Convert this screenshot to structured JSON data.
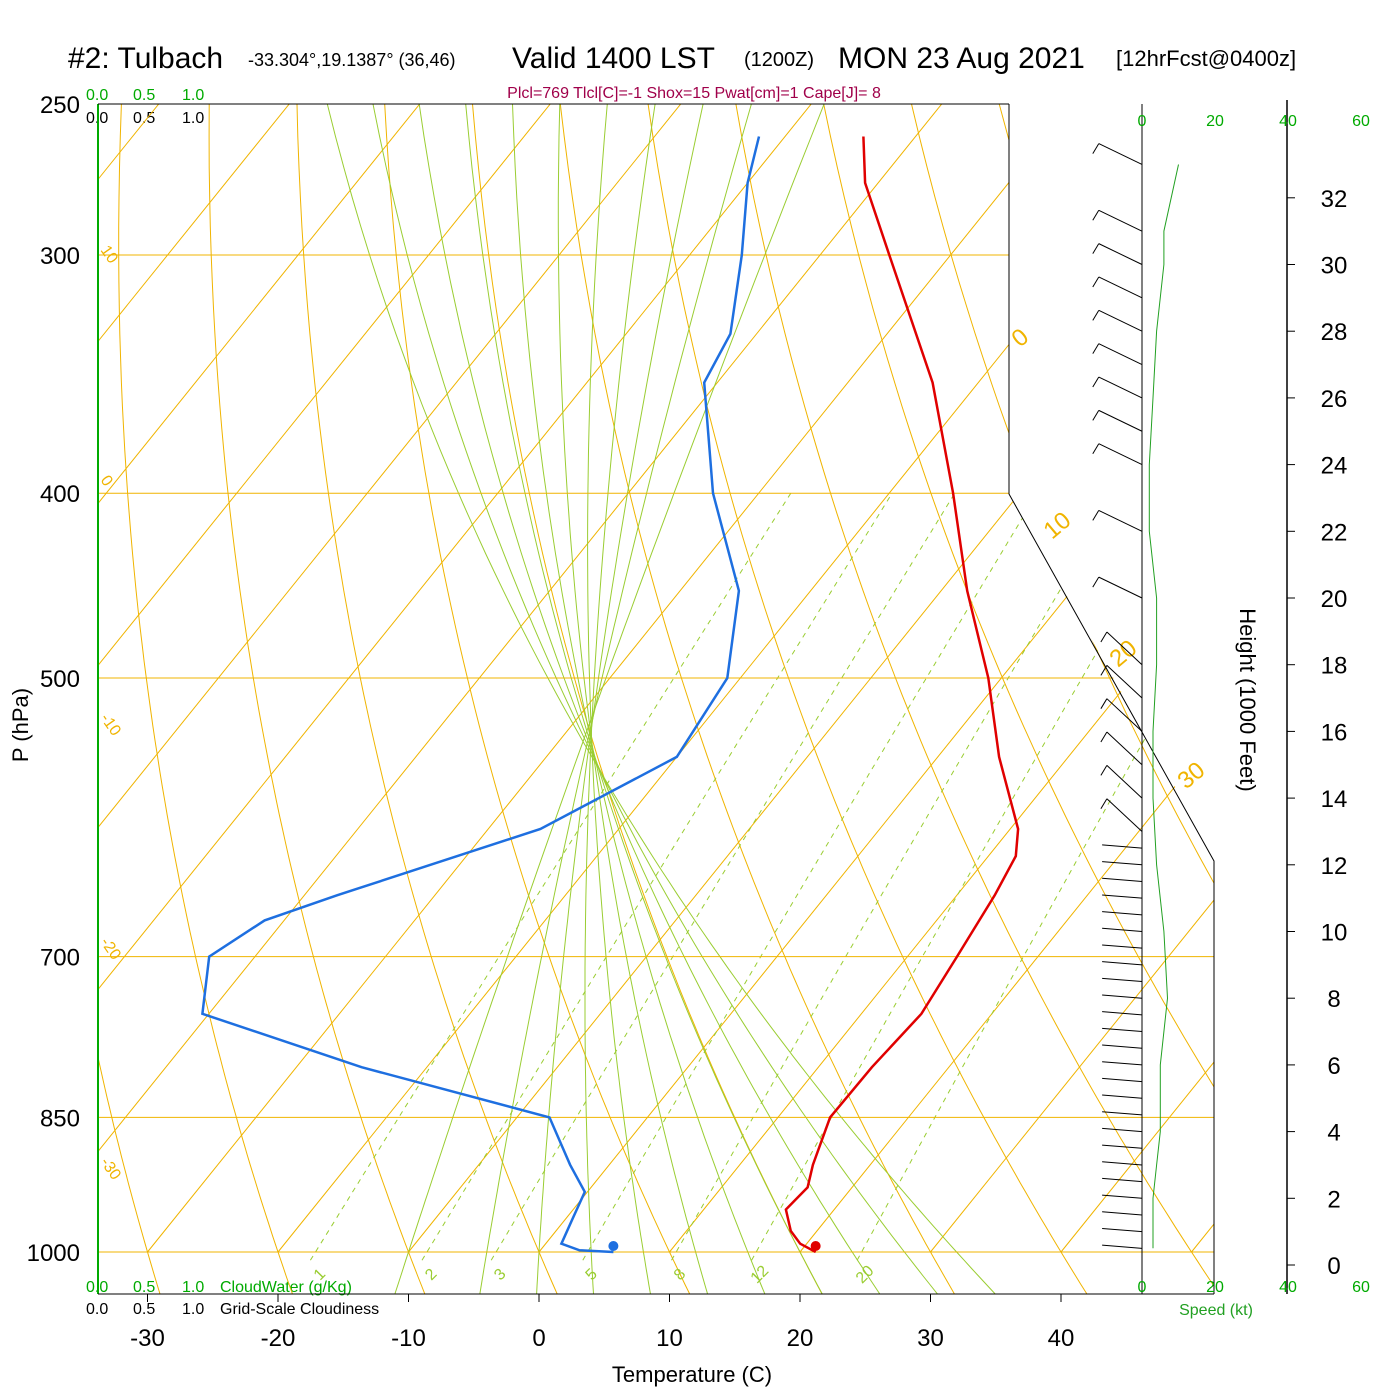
{
  "header": {
    "station": "#2: Tulbach",
    "coords": "-33.304°,19.1387° (36,46)",
    "valid": "Valid 1400 LST",
    "utc": "(1200Z)",
    "date": "MON 23 Aug 2021",
    "forecast": "[12hrFcst@0400z]",
    "indices": "Plcl=769 Tlcl[C]=-1 Shox=15 Pwat[cm]=1 Cape[J]= 8"
  },
  "colors": {
    "isobar": "#f0b400",
    "isotherm": "#f0b400",
    "dry_adiabat": "#f0b400",
    "moist_adiabat": "#9acd32",
    "mixing_ratio": "#9acd32",
    "temperature": "#e00000",
    "dewpoint": "#1e6fe0",
    "green_label": "#00aa00",
    "indices_text": "#a0004a",
    "wind_speed": "#22a022"
  },
  "scales": {
    "cloudwater_ticks": [
      "0.0",
      "0.5",
      "1.0"
    ],
    "cloudiness_ticks": [
      "0.0",
      "0.5",
      "1.0"
    ],
    "cloudwater_label": "CloudWater (g/Kg)",
    "cloudiness_label": "Grid-Scale Cloudiness",
    "speed_ticks": [
      "0",
      "20",
      "40",
      "60"
    ],
    "speed_label": "Speed (kt)"
  },
  "chart_data": {
    "type": "skew-t",
    "xlabel": "Temperature (C)",
    "ylabel": "P (hPa)",
    "y2label": "Height (1000 Feet)",
    "x_ticks": [
      -30,
      -20,
      -10,
      0,
      10,
      20,
      30,
      40
    ],
    "p_ticks": [
      250,
      300,
      400,
      500,
      700,
      850,
      1000
    ],
    "p_range": [
      1000,
      250
    ],
    "height_ticks": [
      0,
      2,
      4,
      6,
      8,
      10,
      12,
      14,
      16,
      18,
      20,
      22,
      24,
      26,
      28,
      30,
      32
    ],
    "mixing_ratio_labels": [
      "1",
      "2",
      "3",
      "5",
      "8",
      "12",
      "20"
    ],
    "dry_adiabat_labels": [
      "10",
      "0",
      "-10",
      "-20",
      "-30",
      "0",
      "10",
      "20",
      "30"
    ],
    "temperature": [
      [
        1000,
        21.2
      ],
      [
        990,
        19.5
      ],
      [
        975,
        18.0
      ],
      [
        950,
        16.3
      ],
      [
        925,
        16.6
      ],
      [
        900,
        15.6
      ],
      [
        850,
        14.0
      ],
      [
        800,
        14.1
      ],
      [
        750,
        14.6
      ],
      [
        700,
        13.8
      ],
      [
        650,
        12.9
      ],
      [
        620,
        12.1
      ],
      [
        600,
        10.6
      ],
      [
        550,
        4.7
      ],
      [
        500,
        -1.0
      ],
      [
        450,
        -8.0
      ],
      [
        400,
        -15.1
      ],
      [
        350,
        -23.5
      ],
      [
        300,
        -34.7
      ],
      [
        275,
        -41.0
      ],
      [
        260,
        -44.0
      ]
    ],
    "dewpoint": [
      [
        1000,
        5.7
      ],
      [
        998,
        3.0
      ],
      [
        990,
        1.2
      ],
      [
        960,
        0.5
      ],
      [
        930,
        -0.2
      ],
      [
        900,
        -3.0
      ],
      [
        850,
        -7.5
      ],
      [
        800,
        -25.0
      ],
      [
        750,
        -40.5
      ],
      [
        700,
        -43.5
      ],
      [
        670,
        -41.5
      ],
      [
        650,
        -37.5
      ],
      [
        600,
        -26.0
      ],
      [
        550,
        -20.0
      ],
      [
        500,
        -21.0
      ],
      [
        450,
        -25.5
      ],
      [
        400,
        -33.5
      ],
      [
        350,
        -41.0
      ],
      [
        330,
        -42.0
      ],
      [
        300,
        -46.0
      ],
      [
        275,
        -50.0
      ],
      [
        260,
        -52.0
      ]
    ],
    "surface_temperature": 21.2,
    "surface_dewpoint": 5.7,
    "wind_speed_kt": [
      [
        0.5,
        3
      ],
      [
        1,
        3
      ],
      [
        2,
        3
      ],
      [
        3,
        4
      ],
      [
        4,
        5
      ],
      [
        6,
        5
      ],
      [
        8,
        7
      ],
      [
        10,
        6
      ],
      [
        12,
        4
      ],
      [
        14,
        3
      ],
      [
        16,
        3
      ],
      [
        18,
        4
      ],
      [
        20,
        4
      ],
      [
        22,
        2
      ],
      [
        24,
        2
      ],
      [
        26,
        3
      ],
      [
        28,
        4
      ],
      [
        30,
        6
      ],
      [
        31,
        6
      ],
      [
        33,
        10
      ]
    ],
    "wind_barbs_height_kft": [
      0.5,
      1.0,
      1.5,
      2.0,
      2.5,
      3.0,
      3.5,
      4.0,
      4.5,
      5.0,
      5.5,
      6.0,
      6.5,
      7.0,
      7.5,
      8.0,
      8.5,
      9.0,
      9.5,
      10.0,
      10.5,
      11.0,
      11.5,
      12.0,
      12.5,
      13.0,
      14.0,
      15.0,
      16.0,
      17.0,
      18.0,
      20.0,
      22.0,
      24.0,
      25.0,
      26.0,
      27.0,
      28.0,
      29.0,
      30.0,
      31.0,
      33.0
    ]
  }
}
